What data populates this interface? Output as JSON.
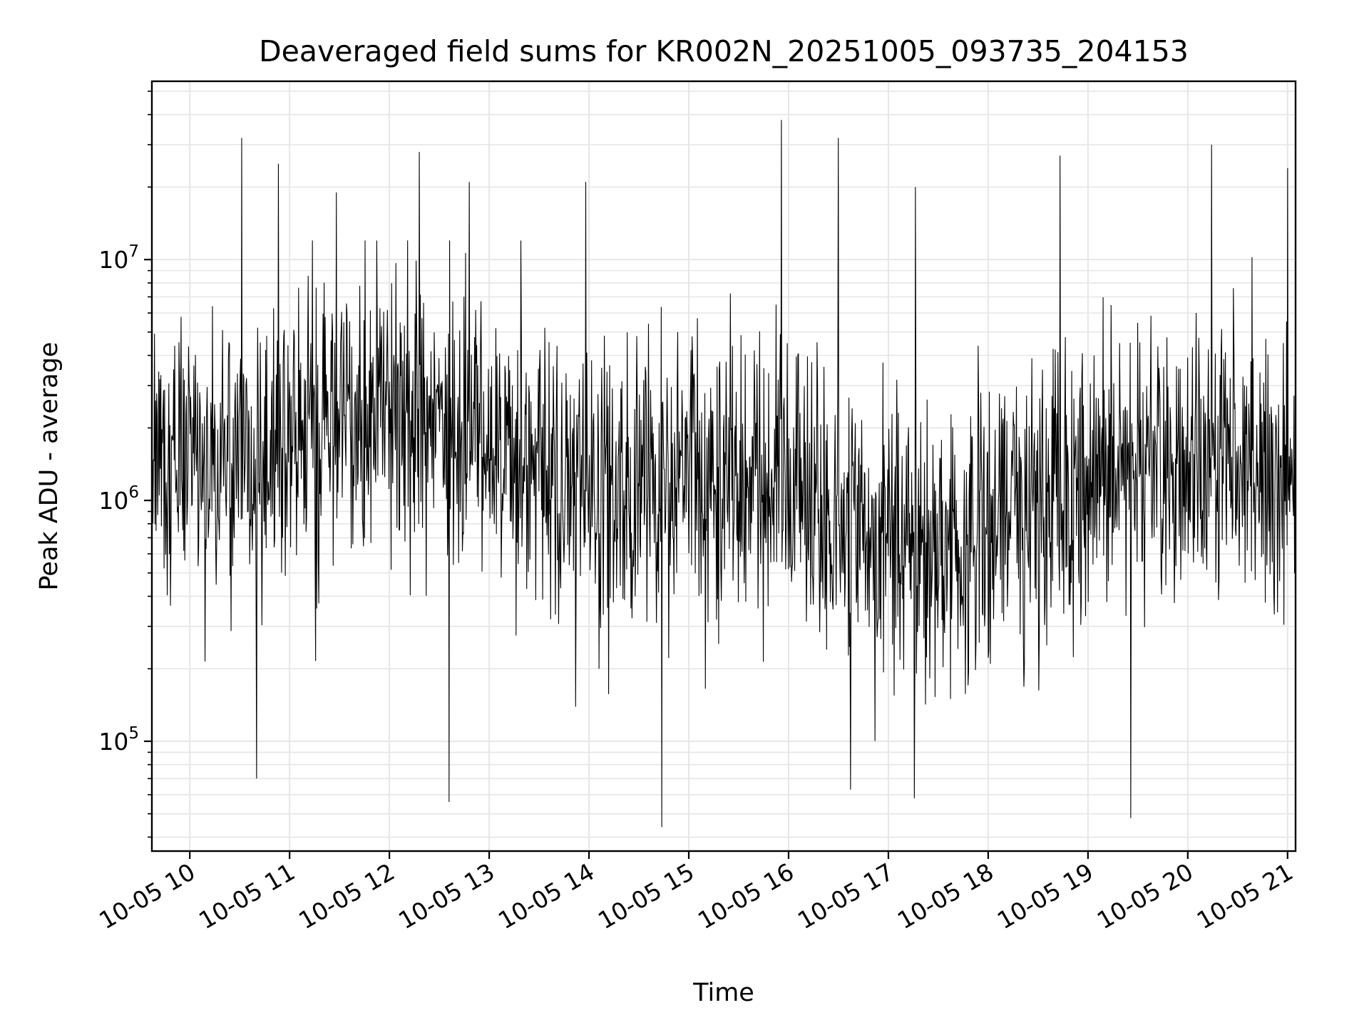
{
  "chart_data": {
    "type": "line",
    "title": "Deaveraged field sums for KR002N_20251005_093735_204153",
    "xlabel": "Time",
    "ylabel": "Peak ADU - average",
    "yscale": "log",
    "ylim": [
      35000,
      55000000
    ],
    "xlim_hours": [
      9.62,
      21.08
    ],
    "x_tick_labels": [
      "10-05 10",
      "10-05 11",
      "10-05 12",
      "10-05 13",
      "10-05 14",
      "10-05 15",
      "10-05 16",
      "10-05 17",
      "10-05 18",
      "10-05 19",
      "10-05 20",
      "10-05 21"
    ],
    "x_tick_hours": [
      10,
      11,
      12,
      13,
      14,
      15,
      16,
      17,
      18,
      19,
      20,
      21
    ],
    "y_major_ticks": [
      {
        "value": 100000,
        "base": "10",
        "exp": "5"
      },
      {
        "value": 1000000,
        "base": "10",
        "exp": "6"
      },
      {
        "value": 10000000,
        "base": "10",
        "exp": "7"
      }
    ],
    "grid": true,
    "line_color": "#000000",
    "grid_color": "#e6e6e6",
    "series": [
      {
        "name": "Peak ADU - average",
        "sample_count": 2150,
        "median": 1300000,
        "peaks": [
          {
            "time": 10.52,
            "value": 32000000
          },
          {
            "time": 10.89,
            "value": 25000000
          },
          {
            "time": 11.47,
            "value": 19000000
          },
          {
            "time": 12.3,
            "value": 28000000
          },
          {
            "time": 12.8,
            "value": 21000000
          },
          {
            "time": 13.97,
            "value": 21000000
          },
          {
            "time": 15.93,
            "value": 38000000
          },
          {
            "time": 16.5,
            "value": 32000000
          },
          {
            "time": 17.27,
            "value": 20000000
          },
          {
            "time": 18.72,
            "value": 27000000
          },
          {
            "time": 20.24,
            "value": 30000000
          },
          {
            "time": 21.0,
            "value": 24000000
          }
        ],
        "troughs": [
          {
            "time": 10.67,
            "value": 70000
          },
          {
            "time": 12.6,
            "value": 56000
          },
          {
            "time": 14.73,
            "value": 44000
          },
          {
            "time": 16.62,
            "value": 63000
          },
          {
            "time": 17.26,
            "value": 58000
          },
          {
            "time": 19.43,
            "value": 48000
          }
        ]
      }
    ]
  }
}
